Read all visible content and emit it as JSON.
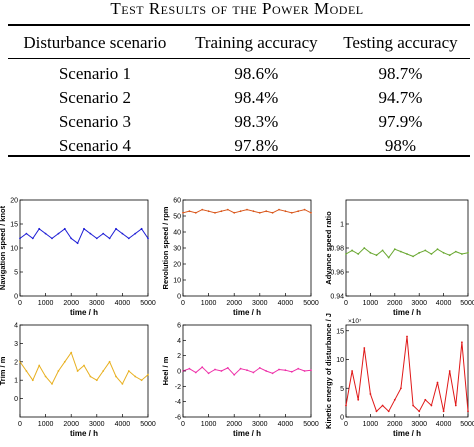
{
  "table": {
    "caption": "Test Results of the Power Model",
    "headers": [
      "Disturbance scenario",
      "Training accuracy",
      "Testing accuracy"
    ],
    "rows": [
      [
        "Scenario 1",
        "98.6%",
        "98.7%"
      ],
      [
        "Scenario 2",
        "98.4%",
        "94.7%"
      ],
      [
        "Scenario 3",
        "98.3%",
        "97.9%"
      ],
      [
        "Scenario 4",
        "97.8%",
        "98%"
      ]
    ]
  },
  "colors": {
    "navigation": "#1f1fd6",
    "revolution": "#d9561a",
    "advance": "#6aa832",
    "trim": "#e8b020",
    "heel": "#ee2fa8",
    "kinetic": "#e01818"
  },
  "chart_data": [
    {
      "type": "line",
      "ylabel": "Navigation speed / knot",
      "xlabel": "time / h",
      "xlim": [
        0,
        5000
      ],
      "ylim": [
        0,
        20
      ],
      "xticks": [
        "0",
        "1000",
        "2000",
        "3000",
        "4000",
        "5000"
      ],
      "yticks": [
        "0",
        "5",
        "10",
        "15",
        "20"
      ],
      "series": [
        {
          "color_key": "navigation",
          "x": [
            0,
            250,
            500,
            750,
            1000,
            1250,
            1500,
            1750,
            2000,
            2250,
            2500,
            2750,
            3000,
            3250,
            3500,
            3750,
            4000,
            4250,
            4500,
            4750,
            5000
          ],
          "y": [
            12,
            13,
            12,
            14,
            13,
            12,
            13,
            14,
            12,
            11,
            14,
            13,
            12,
            13,
            12,
            14,
            13,
            12,
            13,
            14,
            12
          ]
        }
      ]
    },
    {
      "type": "line",
      "ylabel": "Revolution speed / rpm",
      "xlabel": "time / h",
      "xlim": [
        0,
        5000
      ],
      "ylim": [
        0,
        60
      ],
      "xticks": [
        "0",
        "1000",
        "2000",
        "3000",
        "4000",
        "5000"
      ],
      "yticks": [
        "0",
        "10",
        "20",
        "30",
        "40",
        "50",
        "60"
      ],
      "series": [
        {
          "color_key": "revolution",
          "x": [
            0,
            250,
            500,
            750,
            1000,
            1250,
            1500,
            1750,
            2000,
            2250,
            2500,
            2750,
            3000,
            3250,
            3500,
            3750,
            4000,
            4250,
            4500,
            4750,
            5000
          ],
          "y": [
            52,
            53,
            52,
            54,
            53,
            52,
            53,
            54,
            52,
            53,
            54,
            53,
            52,
            53,
            52,
            54,
            53,
            52,
            53,
            54,
            52
          ]
        }
      ]
    },
    {
      "type": "line",
      "ylabel": "Advance speed ratio",
      "xlabel": "time / h",
      "xlim": [
        0,
        5000
      ],
      "ylim": [
        0.94,
        1.02
      ],
      "xticks": [
        "0",
        "1000",
        "2000",
        "3000",
        "4000",
        "5000"
      ],
      "yticks": [
        "0.94",
        "0.96",
        "0.98",
        "1"
      ],
      "series": [
        {
          "color_key": "advance",
          "x": [
            0,
            250,
            500,
            750,
            1000,
            1250,
            1500,
            1750,
            2000,
            2250,
            2500,
            2750,
            3000,
            3250,
            3500,
            3750,
            4000,
            4250,
            4500,
            4750,
            5000
          ],
          "y": [
            0.975,
            0.978,
            0.975,
            0.98,
            0.976,
            0.974,
            0.978,
            0.972,
            0.979,
            0.977,
            0.975,
            0.973,
            0.976,
            0.978,
            0.975,
            0.979,
            0.976,
            0.974,
            0.977,
            0.975,
            0.976
          ]
        }
      ]
    },
    {
      "type": "line",
      "ylabel": "Trim / m",
      "xlabel": "time / h",
      "xlim": [
        0,
        5000
      ],
      "ylim": [
        -1,
        4
      ],
      "xticks": [
        "0",
        "1000",
        "2000",
        "3000",
        "4000",
        "5000"
      ],
      "yticks": [
        "0",
        "1",
        "2",
        "3",
        "4"
      ],
      "series": [
        {
          "color_key": "trim",
          "x": [
            0,
            250,
            500,
            750,
            1000,
            1250,
            1500,
            1750,
            2000,
            2250,
            2500,
            2750,
            3000,
            3250,
            3500,
            3750,
            4000,
            4250,
            4500,
            4750,
            5000
          ],
          "y": [
            2,
            1.5,
            1,
            1.8,
            1.2,
            0.8,
            1.5,
            2,
            2.5,
            1.5,
            1.8,
            1.2,
            1,
            1.5,
            2,
            1.2,
            0.8,
            1.5,
            1.2,
            1,
            1.3
          ]
        }
      ]
    },
    {
      "type": "line",
      "ylabel": "Heel / m",
      "xlabel": "time / h",
      "xlim": [
        0,
        5000
      ],
      "ylim": [
        -6,
        6
      ],
      "xticks": [
        "0",
        "1000",
        "2000",
        "3000",
        "4000",
        "5000"
      ],
      "yticks": [
        "-6",
        "-4",
        "-2",
        "0",
        "2",
        "4",
        "6"
      ],
      "series": [
        {
          "color_key": "heel",
          "x": [
            0,
            250,
            500,
            750,
            1000,
            1250,
            1500,
            1750,
            2000,
            2250,
            2500,
            2750,
            3000,
            3250,
            3500,
            3750,
            4000,
            4250,
            4500,
            4750,
            5000
          ],
          "y": [
            0,
            0.3,
            -0.2,
            0.5,
            -0.3,
            0.2,
            0,
            0.4,
            -0.5,
            0.3,
            0.1,
            -0.2,
            0.4,
            0,
            -0.3,
            0.2,
            0.1,
            -0.1,
            0.3,
            0,
            0.1
          ]
        }
      ]
    },
    {
      "type": "line",
      "ylabel": "Kinetic energy of disturbance / J",
      "xlabel": "time / h",
      "xlim": [
        0,
        5000
      ],
      "ylim": [
        0,
        16
      ],
      "xticks": [
        "0",
        "1000",
        "2000",
        "3000",
        "4000",
        "5000"
      ],
      "yticks": [
        "0",
        "5",
        "10",
        "15"
      ],
      "yscale_label": "×10⁷",
      "series": [
        {
          "color_key": "kinetic",
          "x": [
            0,
            250,
            500,
            750,
            1000,
            1250,
            1500,
            1750,
            2000,
            2250,
            2500,
            2750,
            3000,
            3250,
            3500,
            3750,
            4000,
            4250,
            4500,
            4750,
            5000
          ],
          "y": [
            2,
            8,
            3,
            12,
            4,
            1,
            2,
            1,
            3,
            5,
            14,
            2,
            1,
            3,
            2,
            6,
            1,
            8,
            2,
            13,
            1
          ]
        }
      ]
    }
  ]
}
